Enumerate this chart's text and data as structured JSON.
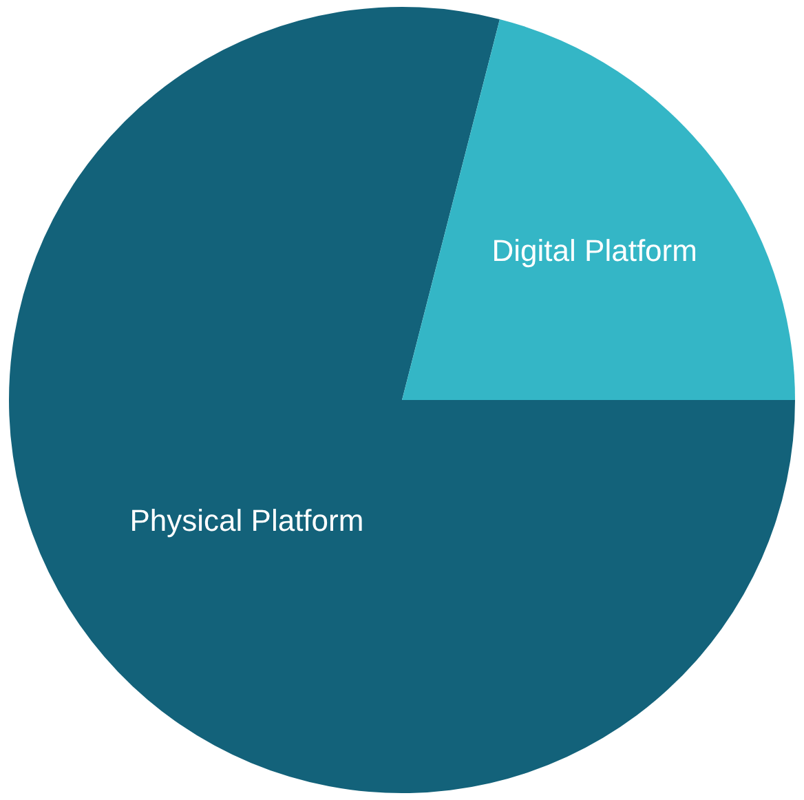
{
  "chart_data": {
    "type": "pie",
    "categories": [
      "Physical Platform",
      "Digital Platform"
    ],
    "values": [
      79,
      21
    ],
    "colors": [
      "#13627a",
      "#34b6c6"
    ],
    "legend": false
  }
}
